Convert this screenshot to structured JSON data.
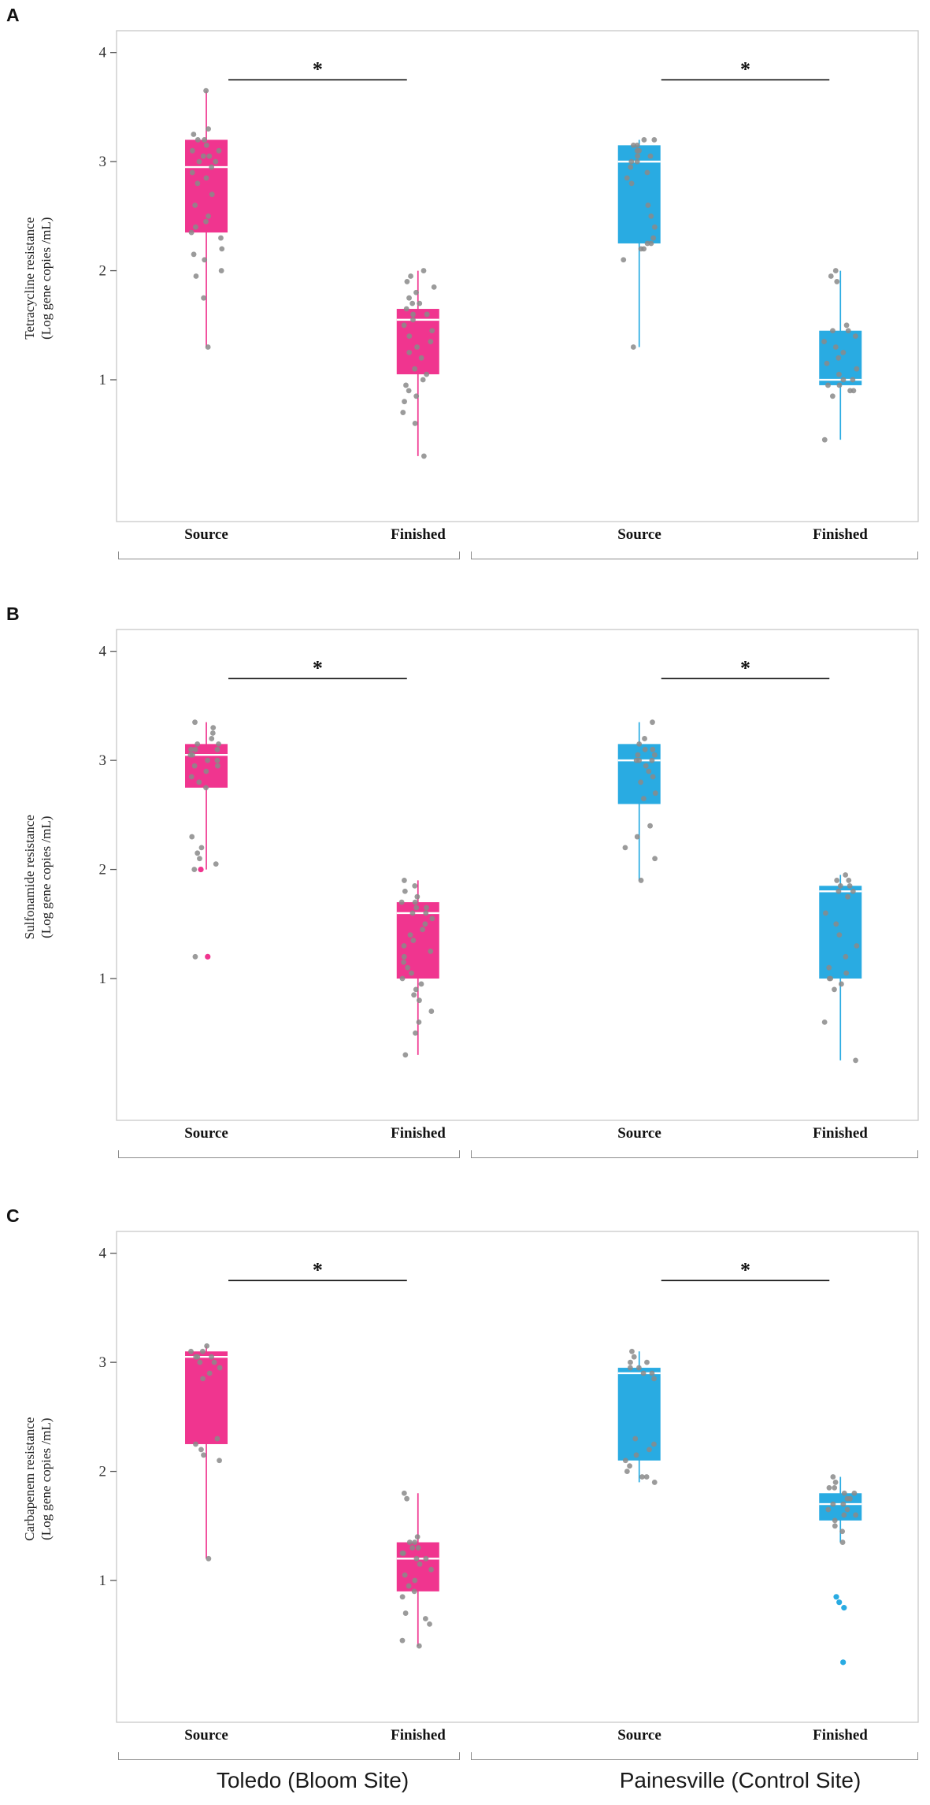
{
  "figure": {
    "site_labels": [
      "Toledo (Bloom Site)",
      "Painesville (Control Site)"
    ],
    "colors": {
      "toledo": "#F0358F",
      "painesville": "#29ABE2",
      "points": "#8a8a8a"
    }
  },
  "chart_data": [
    {
      "type": "box",
      "panel": "A",
      "ylabel_line1": "Tetracycline resistance",
      "ylabel_line2": "(Log gene copies /mL)",
      "yticks": [
        1,
        2,
        3,
        4
      ],
      "ylim": [
        -0.3,
        4.2
      ],
      "sig_label": "*",
      "sig_y": 3.75,
      "groups": [
        {
          "site": "Toledo (Bloom Site)",
          "label": "Source",
          "color": "#F0358F",
          "box": {
            "whisker_low": 1.3,
            "q1": 2.35,
            "median": 2.95,
            "q3": 3.2,
            "whisker_high": 3.65
          },
          "points": [
            3.65,
            3.3,
            3.25,
            3.2,
            3.2,
            3.15,
            3.1,
            3.1,
            3.05,
            3.05,
            3.0,
            3.0,
            2.95,
            2.9,
            2.85,
            2.8,
            2.7,
            2.6,
            2.5,
            2.45,
            2.4,
            2.35,
            2.3,
            2.2,
            2.15,
            2.1,
            2.0,
            1.95,
            1.75,
            1.3
          ]
        },
        {
          "site": "Toledo (Bloom Site)",
          "label": "Finished",
          "color": "#F0358F",
          "box": {
            "whisker_low": 0.3,
            "q1": 1.05,
            "median": 1.55,
            "q3": 1.65,
            "whisker_high": 2.0
          },
          "points": [
            2.0,
            1.95,
            1.9,
            1.85,
            1.8,
            1.75,
            1.7,
            1.7,
            1.65,
            1.6,
            1.6,
            1.55,
            1.5,
            1.45,
            1.4,
            1.35,
            1.3,
            1.25,
            1.2,
            1.1,
            1.05,
            1.0,
            0.95,
            0.9,
            0.85,
            0.8,
            0.7,
            0.6,
            0.3
          ]
        },
        {
          "site": "Painesville (Control Site)",
          "label": "Source",
          "color": "#29ABE2",
          "box": {
            "whisker_low": 1.3,
            "q1": 2.25,
            "median": 3.0,
            "q3": 3.15,
            "whisker_high": 3.2
          },
          "points": [
            3.2,
            3.2,
            3.15,
            3.15,
            3.1,
            3.1,
            3.05,
            3.05,
            3.0,
            3.0,
            2.95,
            2.9,
            2.85,
            2.8,
            2.6,
            2.5,
            2.4,
            2.3,
            2.25,
            2.25,
            2.2,
            2.2,
            2.1,
            1.3
          ]
        },
        {
          "site": "Painesville (Control Site)",
          "label": "Finished",
          "color": "#29ABE2",
          "box": {
            "whisker_low": 0.45,
            "q1": 0.95,
            "median": 1.0,
            "q3": 1.45,
            "whisker_high": 2.0
          },
          "points": [
            2.0,
            1.95,
            1.9,
            1.5,
            1.45,
            1.45,
            1.4,
            1.35,
            1.3,
            1.25,
            1.2,
            1.15,
            1.1,
            1.05,
            1.0,
            1.0,
            0.95,
            0.95,
            0.9,
            0.9,
            0.85,
            0.45
          ]
        }
      ]
    },
    {
      "type": "box",
      "panel": "B",
      "ylabel_line1": "Sulfonamide resistance",
      "ylabel_line2": "(Log gene copies /mL)",
      "yticks": [
        1,
        2,
        3,
        4
      ],
      "ylim": [
        -0.3,
        4.2
      ],
      "sig_label": "*",
      "sig_y": 3.75,
      "groups": [
        {
          "site": "Toledo (Bloom Site)",
          "label": "Source",
          "color": "#F0358F",
          "box": {
            "whisker_low": 2.0,
            "q1": 2.75,
            "median": 3.05,
            "q3": 3.15,
            "whisker_high": 3.35
          },
          "points": [
            3.35,
            3.3,
            3.25,
            3.2,
            3.15,
            3.15,
            3.1,
            3.1,
            3.1,
            3.05,
            3.05,
            3.0,
            3.0,
            2.95,
            2.95,
            2.9,
            2.85,
            2.8,
            2.75,
            2.3,
            2.2,
            2.15,
            2.1,
            2.05,
            2.0,
            1.2
          ],
          "outliers": [
            2.0,
            1.2
          ]
        },
        {
          "site": "Toledo (Bloom Site)",
          "label": "Finished",
          "color": "#F0358F",
          "box": {
            "whisker_low": 0.3,
            "q1": 1.0,
            "median": 1.6,
            "q3": 1.7,
            "whisker_high": 1.9
          },
          "points": [
            1.9,
            1.85,
            1.8,
            1.75,
            1.7,
            1.7,
            1.65,
            1.65,
            1.6,
            1.6,
            1.55,
            1.5,
            1.45,
            1.4,
            1.35,
            1.3,
            1.25,
            1.2,
            1.15,
            1.1,
            1.05,
            1.0,
            0.95,
            0.9,
            0.85,
            0.8,
            0.7,
            0.6,
            0.5,
            0.3
          ]
        },
        {
          "site": "Painesville (Control Site)",
          "label": "Source",
          "color": "#29ABE2",
          "box": {
            "whisker_low": 1.9,
            "q1": 2.6,
            "median": 3.0,
            "q3": 3.15,
            "whisker_high": 3.35
          },
          "points": [
            3.35,
            3.2,
            3.15,
            3.1,
            3.1,
            3.05,
            3.05,
            3.0,
            3.0,
            3.0,
            2.95,
            2.9,
            2.85,
            2.8,
            2.7,
            2.65,
            2.4,
            2.3,
            2.2,
            2.1,
            1.9
          ]
        },
        {
          "site": "Painesville (Control Site)",
          "label": "Finished",
          "color": "#29ABE2",
          "box": {
            "whisker_low": 0.25,
            "q1": 1.0,
            "median": 1.8,
            "q3": 1.85,
            "whisker_high": 1.95
          },
          "points": [
            1.95,
            1.9,
            1.9,
            1.85,
            1.85,
            1.8,
            1.8,
            1.75,
            1.6,
            1.5,
            1.4,
            1.3,
            1.2,
            1.1,
            1.05,
            1.0,
            1.0,
            0.95,
            0.9,
            0.6,
            0.25
          ]
        }
      ]
    },
    {
      "type": "box",
      "panel": "C",
      "ylabel_line1": "Carbapenem resistance",
      "ylabel_line2": "(Log gene copies /mL)",
      "yticks": [
        1,
        2,
        3,
        4
      ],
      "ylim": [
        -0.3,
        4.2
      ],
      "sig_label": "*",
      "sig_y": 3.75,
      "groups": [
        {
          "site": "Toledo (Bloom Site)",
          "label": "Source",
          "color": "#F0358F",
          "box": {
            "whisker_low": 1.2,
            "q1": 2.25,
            "median": 3.05,
            "q3": 3.1,
            "whisker_high": 3.15
          },
          "points": [
            3.15,
            3.1,
            3.1,
            3.05,
            3.05,
            3.05,
            3.0,
            3.0,
            2.95,
            2.9,
            2.85,
            2.3,
            2.25,
            2.2,
            2.15,
            2.1,
            1.2
          ]
        },
        {
          "site": "Toledo (Bloom Site)",
          "label": "Finished",
          "color": "#F0358F",
          "box": {
            "whisker_low": 0.4,
            "q1": 0.9,
            "median": 1.2,
            "q3": 1.35,
            "whisker_high": 1.8
          },
          "points": [
            1.8,
            1.75,
            1.4,
            1.35,
            1.35,
            1.3,
            1.3,
            1.25,
            1.25,
            1.2,
            1.2,
            1.15,
            1.1,
            1.05,
            1.0,
            0.95,
            0.9,
            0.85,
            0.7,
            0.65,
            0.6,
            0.45,
            0.4
          ]
        },
        {
          "site": "Painesville (Control Site)",
          "label": "Source",
          "color": "#29ABE2",
          "box": {
            "whisker_low": 1.9,
            "q1": 2.1,
            "median": 2.9,
            "q3": 2.95,
            "whisker_high": 3.1
          },
          "points": [
            3.1,
            3.05,
            3.0,
            3.0,
            2.95,
            2.95,
            2.9,
            2.9,
            2.85,
            2.3,
            2.25,
            2.2,
            2.15,
            2.1,
            2.05,
            2.0,
            1.95,
            1.95,
            1.9
          ]
        },
        {
          "site": "Painesville (Control Site)",
          "label": "Finished",
          "color": "#29ABE2",
          "box": {
            "whisker_low": 1.35,
            "q1": 1.55,
            "median": 1.7,
            "q3": 1.8,
            "whisker_high": 1.95
          },
          "points": [
            1.95,
            1.9,
            1.85,
            1.85,
            1.8,
            1.8,
            1.75,
            1.75,
            1.7,
            1.7,
            1.65,
            1.65,
            1.6,
            1.6,
            1.55,
            1.5,
            1.45,
            1.35
          ],
          "outliers": [
            0.85,
            0.8,
            0.75,
            0.25
          ]
        }
      ]
    }
  ]
}
